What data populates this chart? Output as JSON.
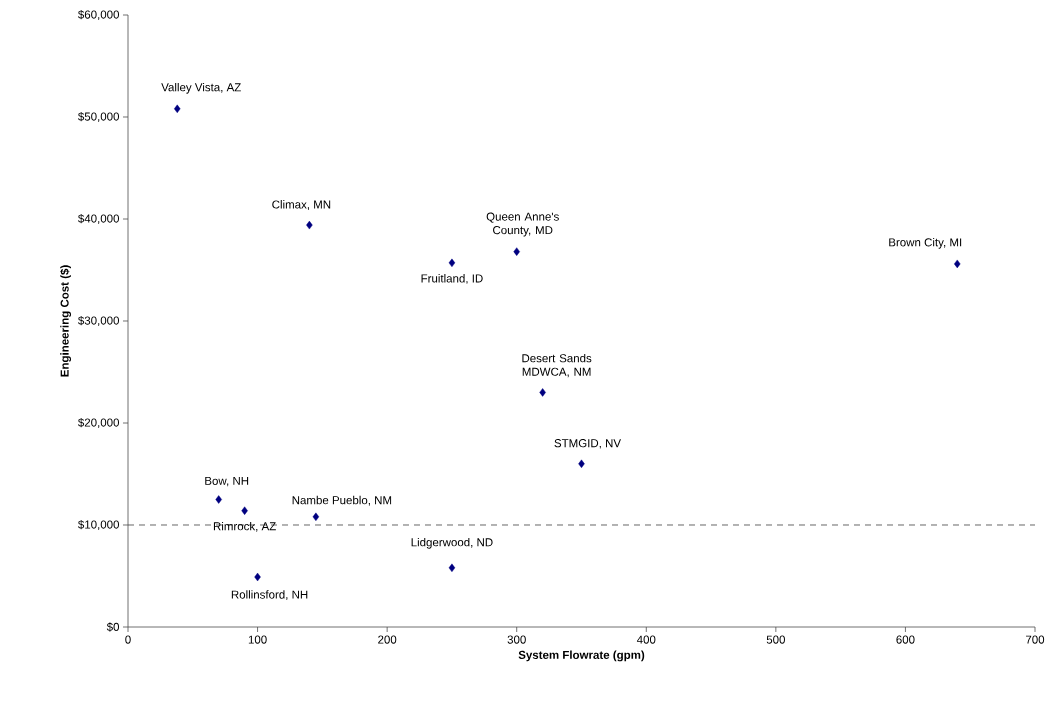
{
  "chart_data": {
    "type": "scatter",
    "xlabel": "System Flowrate (gpm)",
    "ylabel": "Engineering Cost ($)",
    "x": [
      38,
      140,
      250,
      300,
      320,
      350,
      640,
      70,
      90,
      145,
      100,
      250
    ],
    "values": [
      50800,
      39400,
      35700,
      36800,
      23000,
      16000,
      35600,
      12500,
      11400,
      10800,
      4900,
      5800
    ],
    "color": "#000080",
    "marker": "diamond",
    "xlim": [
      0,
      700
    ],
    "xticks": [
      0,
      100,
      200,
      300,
      400,
      500,
      600,
      700
    ],
    "ylim": [
      0,
      60000
    ],
    "yticks": [
      {
        "value": 0,
        "label": "$0"
      },
      {
        "value": 10000,
        "label": "$10,000"
      },
      {
        "value": 20000,
        "label": "$20,000"
      },
      {
        "value": 30000,
        "label": "$30,000"
      },
      {
        "value": 40000,
        "label": "$40,000"
      },
      {
        "value": 50000,
        "label": "$50,000"
      },
      {
        "value": 60000,
        "label": "$60,000"
      }
    ],
    "ref_lines": [
      {
        "axis": "y",
        "value": 10000,
        "color": "#404040",
        "line_style": "dashed"
      }
    ],
    "annotations": [
      {
        "text": "Valley Vista, AZ",
        "x": 38,
        "y": 50800
      },
      {
        "text": "Climax, MN",
        "x": 140,
        "y": 39400
      },
      {
        "text": "Fruitland, ID",
        "x": 250,
        "y": 35700
      },
      {
        "text": "Queen Anne's County, MD",
        "x": 300,
        "y": 36800
      },
      {
        "text": "Desert Sands MDWCA, NM",
        "x": 320,
        "y": 23000
      },
      {
        "text": "STMGID, NV",
        "x": 350,
        "y": 16000
      },
      {
        "text": "Brown City, MI",
        "x": 640,
        "y": 35600
      },
      {
        "text": "Bow, NH",
        "x": 70,
        "y": 12500
      },
      {
        "text": "Rimrock, AZ",
        "x": 90,
        "y": 11400
      },
      {
        "text": "Nambe Pueblo, NM",
        "x": 145,
        "y": 10800
      },
      {
        "text": "Rollinsford, NH",
        "x": 100,
        "y": 4900
      },
      {
        "text": "Lidgerwood, ND",
        "x": 250,
        "y": 5800
      }
    ]
  }
}
